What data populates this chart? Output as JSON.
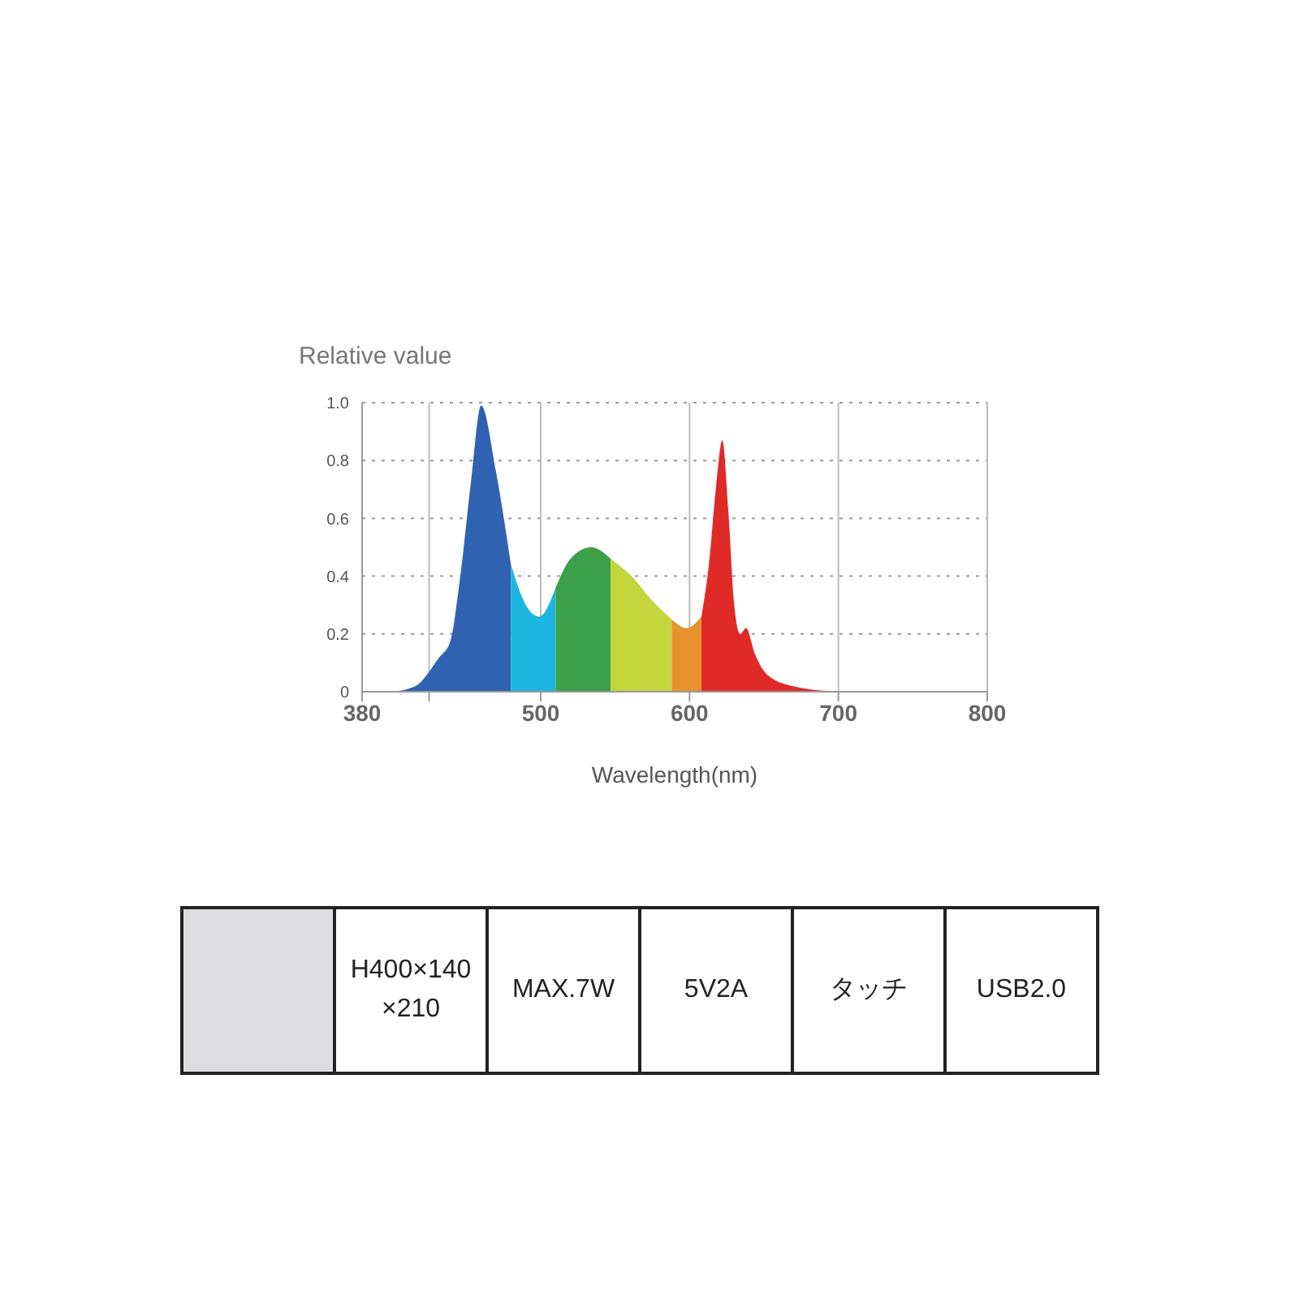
{
  "chart_data": [
    {
      "type": "area",
      "ylabel": "Relative value",
      "xlabel": "Wavelength(nm)",
      "xlim": [
        380,
        800
      ],
      "xticks": [
        380,
        {
          "value": 425,
          "label": null
        },
        500,
        600,
        700,
        800
      ],
      "ylim": [
        0,
        1
      ],
      "yticks": [
        0,
        0.2,
        0.4,
        0.6,
        {
          "value": 0.8,
          "label": "0.8"
        },
        {
          "value": 1,
          "label": "1.0"
        }
      ],
      "grid": true,
      "series": [
        {
          "color": "#2f63b1",
          "x": [
            401,
            416,
            432,
            439,
            446,
            453,
            460,
            470,
            480
          ],
          "values": [
            0,
            0.02,
            0.12,
            0.17,
            0.4,
            0.72,
            0.99,
            0.76,
            0.44
          ]
        },
        {
          "color": "#1db6e0",
          "x": [
            480,
            490,
            499,
            510
          ],
          "values": [
            0.44,
            0.3,
            0.26,
            0.36
          ]
        },
        {
          "color": "#3c9f4a",
          "x": [
            510,
            520,
            534,
            547
          ],
          "values": [
            0.36,
            0.46,
            0.5,
            0.46
          ]
        },
        {
          "color": "#c3d63e",
          "x": [
            547,
            561,
            574,
            588
          ],
          "values": [
            0.46,
            0.4,
            0.32,
            0.25
          ]
        },
        {
          "color": "#e8912f",
          "x": [
            588,
            598,
            608
          ],
          "values": [
            0.25,
            0.22,
            0.26
          ]
        },
        {
          "color": "#e02a28",
          "x": [
            608,
            613,
            618,
            622,
            626,
            630,
            634,
            638,
            644,
            652,
            669,
            700
          ],
          "values": [
            0.26,
            0.44,
            0.72,
            0.87,
            0.63,
            0.3,
            0.2,
            0.22,
            0.13,
            0.06,
            0.02,
            0
          ]
        }
      ]
    },
    {
      "type": "other",
      "annotations": [
        "H400×140×210",
        "MAX.7W",
        "5V2A",
        "タッチ",
        "USB2.0"
      ]
    }
  ]
}
